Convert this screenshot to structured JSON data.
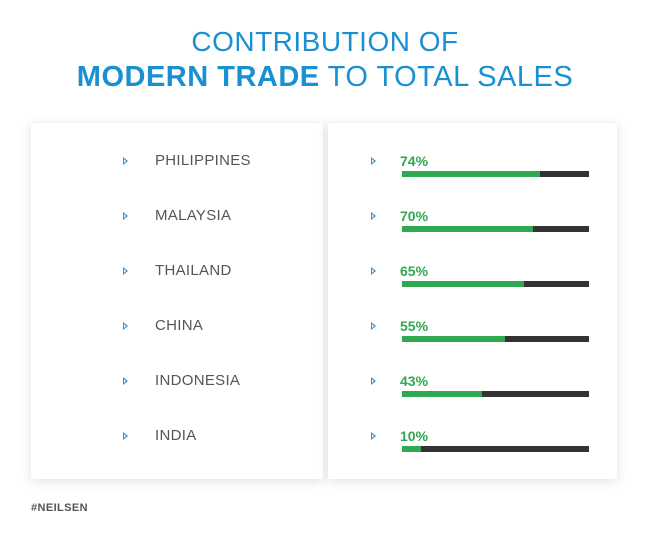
{
  "title": {
    "line1": "CONTRIBUTION OF",
    "line2_bold": "MODERN TRADE",
    "line2_rest": " TO TOTAL SALES"
  },
  "colors": {
    "title": "#1a8fd1",
    "bar_fill": "#2fa84f",
    "bar_track": "#333333",
    "arrow": "#3a8cc8"
  },
  "icons": {
    "row_marker": "caret-right-icon"
  },
  "chart_data": {
    "type": "bar",
    "orientation": "horizontal",
    "title": "CONTRIBUTION OF MODERN TRADE TO TOTAL SALES",
    "categories": [
      "PHILIPPINES",
      "MALAYSIA",
      "THAILAND",
      "CHINA",
      "INDONESIA",
      "INDIA"
    ],
    "values": [
      74,
      70,
      65,
      55,
      43,
      10
    ],
    "value_labels": [
      "74%",
      "70%",
      "65%",
      "55%",
      "43%",
      "10%"
    ],
    "unit": "%",
    "xlim": [
      0,
      100
    ],
    "grid": false,
    "legend": "none"
  },
  "footer": {
    "source": "#NEILSEN"
  }
}
